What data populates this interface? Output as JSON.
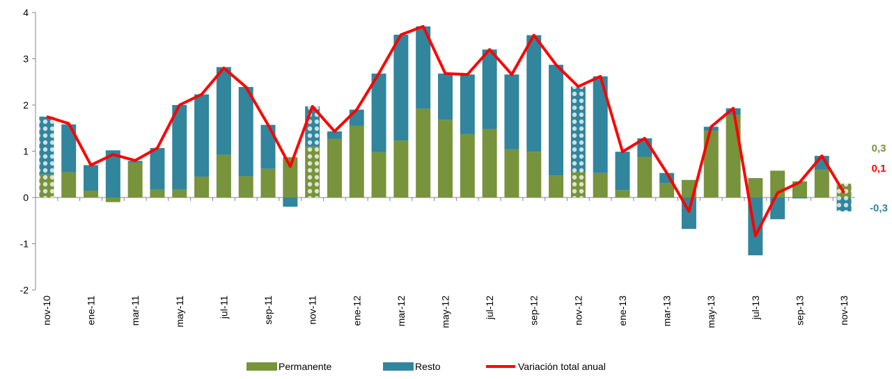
{
  "chart_data": {
    "type": "bar",
    "categories": [
      "nov-10",
      null,
      "ene-11",
      null,
      "mar-11",
      null,
      "may-11",
      null,
      "jul-11",
      null,
      "sep-11",
      null,
      "nov-11",
      null,
      "ene-12",
      null,
      "mar-12",
      null,
      "may-12",
      null,
      "jul-12",
      null,
      "sep-12",
      null,
      "nov-12",
      null,
      "ene-13",
      null,
      "mar-13",
      null,
      "may-13",
      null,
      "jul-13",
      null,
      "sep-13",
      null,
      "nov-13"
    ],
    "series": [
      {
        "name": "Permanente",
        "type": "bar",
        "color": "#77933c",
        "values": [
          0.5,
          0.55,
          0.15,
          -0.1,
          0.75,
          0.17,
          0.17,
          0.45,
          0.92,
          0.46,
          0.62,
          0.87,
          1.1,
          1.27,
          1.55,
          0.98,
          1.23,
          1.92,
          1.68,
          1.37,
          1.48,
          1.04,
          0.99,
          0.48,
          0.55,
          0.53,
          0.16,
          0.88,
          0.31,
          0.38,
          1.44,
          1.78,
          0.42,
          0.58,
          0.35,
          0.6,
          0.3
        ]
      },
      {
        "name": "Resto",
        "type": "bar",
        "color": "#31859c",
        "values": [
          1.25,
          1.03,
          0.55,
          1.02,
          0.04,
          0.9,
          1.83,
          1.78,
          1.9,
          1.93,
          0.95,
          -0.2,
          0.87,
          0.16,
          0.35,
          1.7,
          2.29,
          1.78,
          1.0,
          1.29,
          1.72,
          1.62,
          2.52,
          2.39,
          1.85,
          2.09,
          0.83,
          0.4,
          0.22,
          -0.68,
          0.09,
          0.15,
          -1.25,
          -0.47,
          -0.02,
          0.3,
          -0.3
        ]
      },
      {
        "name": "Variación total anual",
        "type": "line",
        "color": "#ff0000",
        "values": [
          1.75,
          1.6,
          0.7,
          0.93,
          0.8,
          1.07,
          2.0,
          2.23,
          2.8,
          2.39,
          1.57,
          0.67,
          1.97,
          1.43,
          1.9,
          2.68,
          3.52,
          3.7,
          2.68,
          2.66,
          3.2,
          2.66,
          3.51,
          2.87,
          2.4,
          2.62,
          0.99,
          1.28,
          0.53,
          -0.3,
          1.53,
          1.93,
          -0.83,
          0.1,
          0.33,
          0.9,
          0.1
        ]
      }
    ],
    "patterned": [
      0,
      12,
      24,
      36
    ],
    "annotations": [
      {
        "text": "0,3",
        "color": "#77933c"
      },
      {
        "text": "0,1",
        "color": "#ff0000"
      },
      {
        "text": "-0,3",
        "color": "#31859c"
      }
    ],
    "ylim": [
      -2,
      4
    ],
    "yticks": [
      -2,
      -1,
      0,
      1,
      2,
      3,
      4
    ],
    "legend": "bottom"
  }
}
